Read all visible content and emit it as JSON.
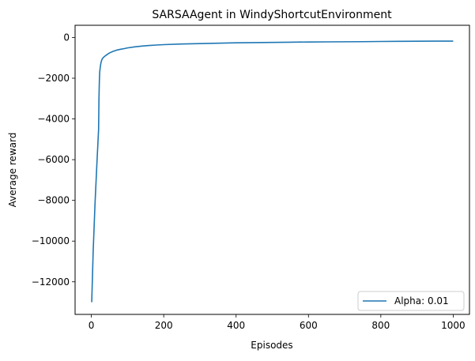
{
  "chart_data": {
    "type": "line",
    "title": "SARSAAgent in WindyShortcutEnvironment",
    "xlabel": "Episodes",
    "ylabel": "Average reward",
    "xlim": [
      -45,
      1045
    ],
    "ylim": [
      -13600,
      600
    ],
    "xticks": [
      0,
      200,
      400,
      600,
      800,
      1000
    ],
    "yticks": [
      -12000,
      -10000,
      -8000,
      -6000,
      -4000,
      -2000,
      0
    ],
    "grid": false,
    "legend_position": "lower-right",
    "series": [
      {
        "name": "Alpha: 0.01",
        "color": "#1f77b4",
        "x": [
          1,
          5,
          10,
          15,
          20,
          21,
          22,
          23,
          25,
          27,
          30,
          35,
          40,
          45,
          50,
          60,
          70,
          80,
          90,
          100,
          120,
          140,
          160,
          180,
          200,
          250,
          300,
          350,
          400,
          450,
          500,
          550,
          600,
          650,
          700,
          750,
          800,
          850,
          900,
          950,
          1000
        ],
        "values": [
          -13000,
          -10500,
          -8200,
          -6300,
          -4500,
          -3000,
          -2200,
          -1700,
          -1400,
          -1200,
          -1050,
          -950,
          -880,
          -820,
          -760,
          -680,
          -620,
          -580,
          -550,
          -510,
          -460,
          -420,
          -390,
          -370,
          -350,
          -320,
          -300,
          -280,
          -260,
          -250,
          -240,
          -230,
          -220,
          -215,
          -210,
          -205,
          -195,
          -190,
          -185,
          -180,
          -180
        ]
      }
    ]
  }
}
